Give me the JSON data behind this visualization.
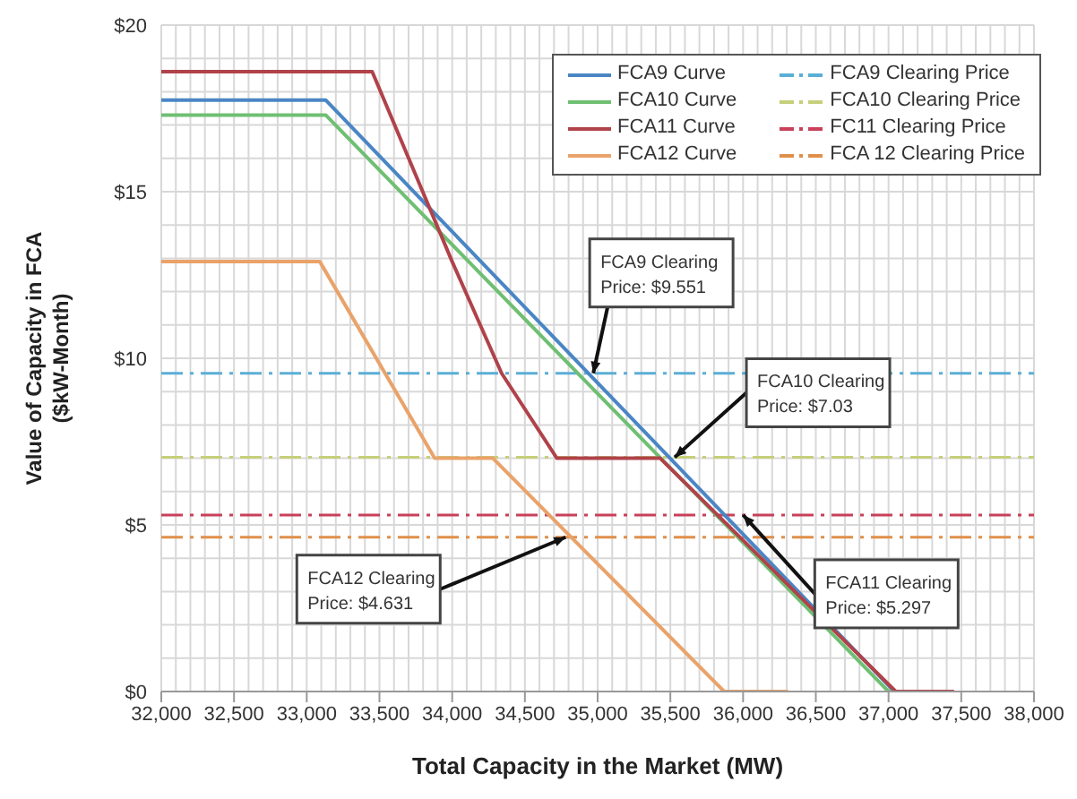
{
  "chart_data": {
    "type": "line",
    "xlabel": "Total Capacity in the Market (MW)",
    "ylabel": "Value of Capacity in FCA\n($kW-Month)",
    "series": [
      {
        "name": "FCA9 Curve",
        "color": "#4a86c5",
        "x": [
          32000,
          33130,
          37040,
          37450
        ],
        "values": [
          17.75,
          17.75,
          0,
          0
        ]
      },
      {
        "name": "FCA10 Curve",
        "color": "#6fbf73",
        "x": [
          32000,
          33130,
          37000,
          37450
        ],
        "values": [
          17.3,
          17.3,
          0,
          0
        ]
      },
      {
        "name": "FCA11 Curve",
        "color": "#b0424a",
        "x": [
          32000,
          33450,
          34000,
          34340,
          34720,
          35430,
          37050,
          37450
        ],
        "values": [
          18.6,
          18.6,
          12.9,
          9.55,
          7.0,
          7.0,
          0,
          0
        ]
      },
      {
        "name": "FCA12 Curve",
        "color": "#e9a36a",
        "x": [
          32000,
          33090,
          33880,
          34280,
          35870,
          36310
        ],
        "values": [
          12.9,
          12.9,
          7.0,
          7.0,
          0,
          0
        ]
      }
    ],
    "ref_lines": [
      {
        "axis": "y",
        "value": 9.551,
        "label": "FCA9 Clearing Price",
        "color": "#5aaed6",
        "line_style": "dashed"
      },
      {
        "axis": "y",
        "value": 7.03,
        "label": "FCA10 Clearing Price",
        "color": "#c6cf7a",
        "line_style": "dashed"
      },
      {
        "axis": "y",
        "value": 5.297,
        "label": "FC11 Clearing Price",
        "color": "#c8405a",
        "line_style": "dashed"
      },
      {
        "axis": "y",
        "value": 4.631,
        "label": "FCA 12 Clearing Price",
        "color": "#e08f4a",
        "line_style": "dashed"
      }
    ],
    "annotations": [
      {
        "text": "FCA9 Clearing Price: $9.551",
        "x": 34970,
        "y": 9.551
      },
      {
        "text": "FCA10 Clearing Price: $7.03",
        "x": 35530,
        "y": 7.03
      },
      {
        "text": "FCA11 Clearing Price: $5.297",
        "x": 36000,
        "y": 5.297
      },
      {
        "text": "FCA12 Clearing Price: $4.631",
        "x": 34780,
        "y": 4.631
      }
    ],
    "xlim": [
      32000,
      38000
    ],
    "xticks": [
      {
        "value": 32000,
        "label": "32,000"
      },
      {
        "value": 32500,
        "label": "32,500"
      },
      {
        "value": 33000,
        "label": "33,000"
      },
      {
        "value": 33500,
        "label": "33,500"
      },
      {
        "value": 34000,
        "label": "34,000"
      },
      {
        "value": 34500,
        "label": "34,500"
      },
      {
        "value": 35000,
        "label": "35,000"
      },
      {
        "value": 35500,
        "label": "35,500"
      },
      {
        "value": 36000,
        "label": "36,000"
      },
      {
        "value": 36500,
        "label": "36,500"
      },
      {
        "value": 37000,
        "label": "37,000"
      },
      {
        "value": 37500,
        "label": "37,500"
      },
      {
        "value": 38000,
        "label": "38,000"
      }
    ],
    "ylim": [
      0,
      20
    ],
    "yticks": [
      {
        "value": 0,
        "label": "$0"
      },
      {
        "value": 5,
        "label": "$5"
      },
      {
        "value": 10,
        "label": "$10"
      },
      {
        "value": 15,
        "label": "$15"
      },
      {
        "value": 20,
        "label": "$20"
      }
    ],
    "grid": true,
    "legend": "top right",
    "marker": "none",
    "line_style": "solid"
  }
}
